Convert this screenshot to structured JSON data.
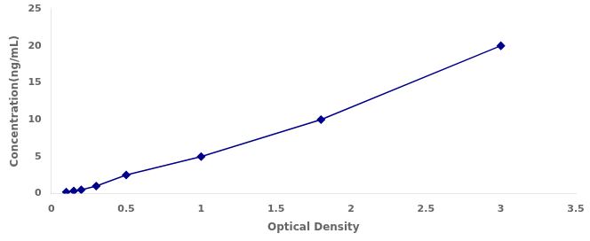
{
  "chart_data": {
    "type": "line",
    "x": [
      0.1,
      0.15,
      0.2,
      0.3,
      0.5,
      1.0,
      1.8,
      3.0
    ],
    "values": [
      0.2,
      0.35,
      0.5,
      1.0,
      2.5,
      5.0,
      10.0,
      20.0
    ],
    "color": "#00008B",
    "marker": "diamond",
    "line_style": "solid",
    "xlabel": "Optical Density",
    "ylabel": "Concentration(ng/mL)",
    "xlim": [
      0,
      3.5
    ],
    "ylim": [
      0,
      25
    ],
    "xticks": [
      0,
      0.5,
      1.0,
      1.5,
      2.0,
      2.5,
      3.0,
      3.5
    ],
    "yticks": [
      0,
      5,
      10,
      15,
      20,
      25
    ],
    "grid": false
  }
}
